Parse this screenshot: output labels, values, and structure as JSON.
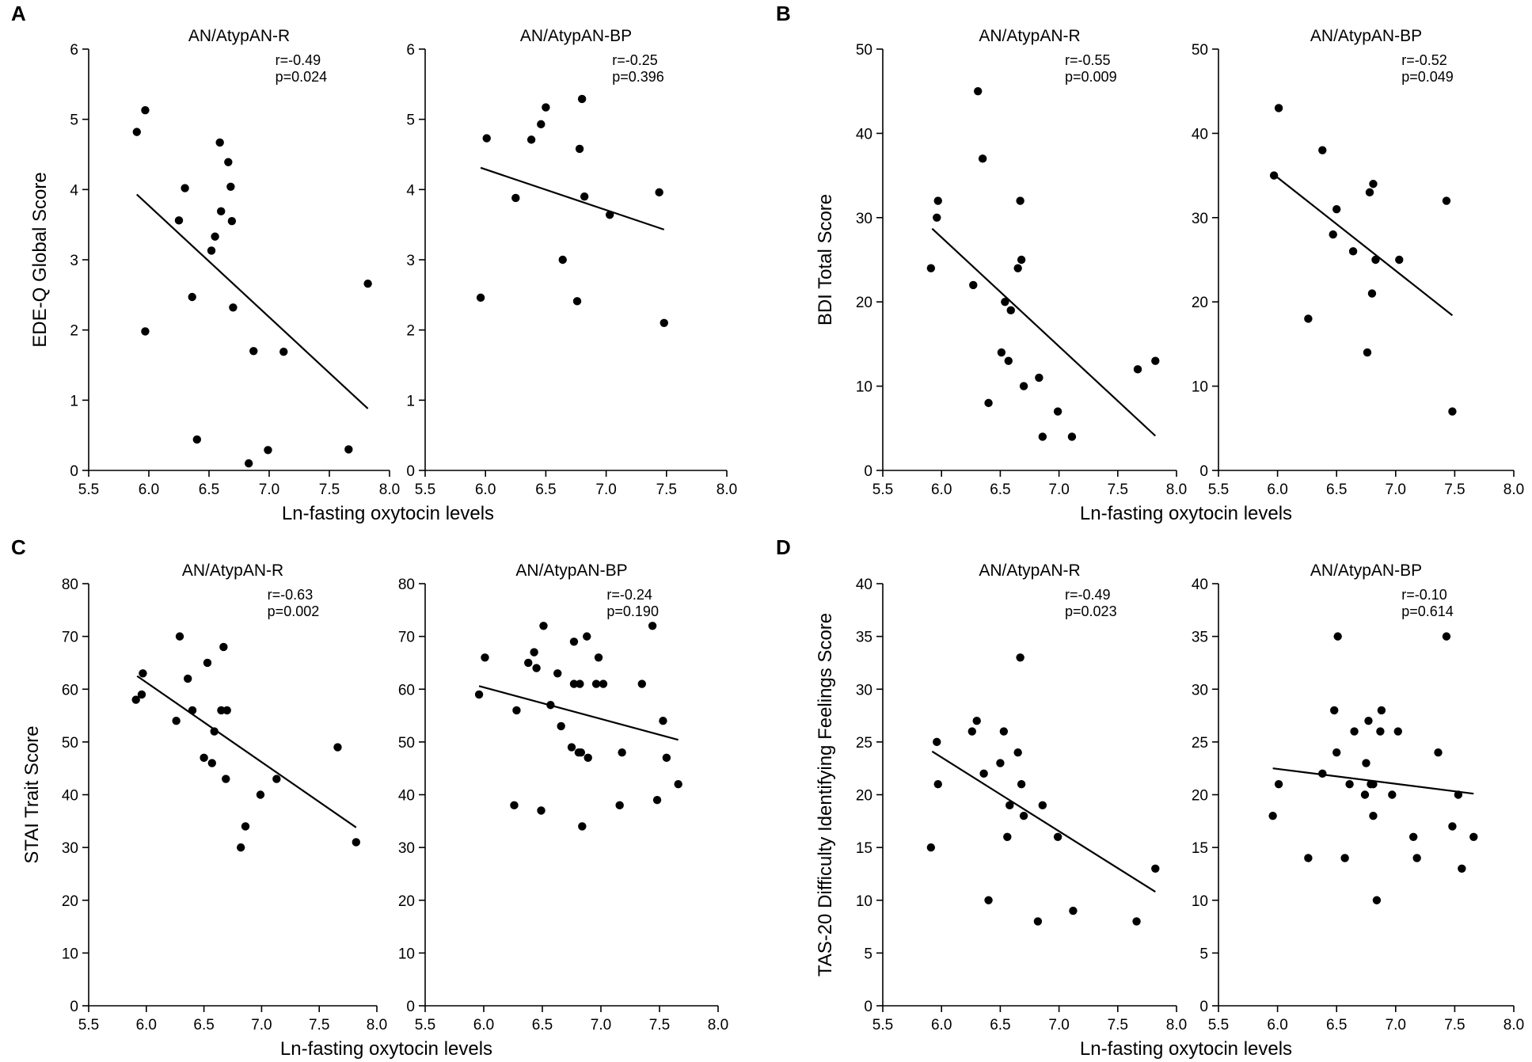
{
  "chart_data": [
    {
      "id": "A",
      "letter": "A",
      "type": "scatter",
      "ylabel": "EDE-Q Global Score",
      "xlabel": "Ln-fasting oxytocin levels",
      "ylim": [
        0,
        6
      ],
      "yticks": [
        0,
        1,
        2,
        3,
        4,
        5,
        6
      ],
      "subplots": [
        {
          "title": "AN/AtypAN-R",
          "r_text": "r=-0.49",
          "p_text": "p=0.024",
          "xlim": [
            5.5,
            8.0
          ],
          "xticks": [
            "5.5",
            "6.0",
            "6.5",
            "7.0",
            "7.5",
            "8.0"
          ],
          "regression": {
            "x": [
              5.9,
              7.82
            ],
            "y": [
              3.93,
              0.88
            ]
          },
          "points": [
            [
              5.9,
              4.82
            ],
            [
              5.97,
              5.13
            ],
            [
              5.97,
              1.98
            ],
            [
              6.25,
              3.56
            ],
            [
              6.3,
              4.02
            ],
            [
              6.36,
              2.47
            ],
            [
              6.4,
              0.44
            ],
            [
              6.52,
              3.13
            ],
            [
              6.55,
              3.33
            ],
            [
              6.59,
              4.67
            ],
            [
              6.6,
              3.69
            ],
            [
              6.66,
              4.39
            ],
            [
              6.68,
              4.04
            ],
            [
              6.69,
              3.55
            ],
            [
              6.7,
              2.32
            ],
            [
              6.83,
              0.1
            ],
            [
              6.87,
              1.7
            ],
            [
              6.99,
              0.29
            ],
            [
              7.12,
              1.69
            ],
            [
              7.66,
              0.3
            ],
            [
              7.82,
              2.66
            ]
          ]
        },
        {
          "title": "AN/AtypAN-BP",
          "r_text": "r=-0.25",
          "p_text": "p=0.396",
          "xlim": [
            5.5,
            8.0
          ],
          "xticks": [
            "5.5",
            "6.0",
            "6.5",
            "7.0",
            "7.5",
            "8.0"
          ],
          "regression": {
            "x": [
              5.96,
              7.48
            ],
            "y": [
              4.31,
              3.43
            ]
          },
          "points": [
            [
              5.96,
              2.46
            ],
            [
              6.01,
              4.73
            ],
            [
              6.25,
              3.88
            ],
            [
              6.38,
              4.71
            ],
            [
              6.46,
              4.93
            ],
            [
              6.5,
              5.17
            ],
            [
              6.64,
              3.0
            ],
            [
              6.76,
              2.41
            ],
            [
              6.78,
              4.58
            ],
            [
              6.8,
              5.29
            ],
            [
              6.82,
              3.9
            ],
            [
              7.03,
              3.64
            ],
            [
              7.44,
              3.96
            ],
            [
              7.48,
              2.1
            ]
          ]
        }
      ]
    },
    {
      "id": "B",
      "letter": "B",
      "type": "scatter",
      "ylabel": "BDI Total Score",
      "xlabel": "Ln-fasting oxytocin levels",
      "ylim": [
        0,
        50
      ],
      "yticks": [
        0,
        10,
        20,
        30,
        40,
        50
      ],
      "subplots": [
        {
          "title": "AN/AtypAN-R",
          "r_text": "r=-0.55",
          "p_text": "p=0.009",
          "xlim": [
            5.5,
            8.0
          ],
          "xticks": [
            "5.5",
            "6.0",
            "6.5",
            "7.0",
            "7.5",
            "8.0"
          ],
          "regression": {
            "x": [
              5.92,
              7.82
            ],
            "y": [
              28.7,
              4.1
            ]
          },
          "points": [
            [
              5.91,
              24
            ],
            [
              5.96,
              30
            ],
            [
              5.97,
              32
            ],
            [
              6.27,
              22
            ],
            [
              6.31,
              45
            ],
            [
              6.35,
              37
            ],
            [
              6.4,
              8
            ],
            [
              6.51,
              14
            ],
            [
              6.54,
              20
            ],
            [
              6.57,
              13
            ],
            [
              6.59,
              19
            ],
            [
              6.65,
              24
            ],
            [
              6.67,
              32
            ],
            [
              6.68,
              25
            ],
            [
              6.7,
              10
            ],
            [
              6.83,
              11
            ],
            [
              6.86,
              4
            ],
            [
              6.99,
              7
            ],
            [
              7.11,
              4
            ],
            [
              7.67,
              12
            ],
            [
              7.82,
              13
            ]
          ]
        },
        {
          "title": "AN/AtypAN-BP",
          "r_text": "r=-0.52",
          "p_text": "p=0.049",
          "xlim": [
            5.5,
            8.0
          ],
          "xticks": [
            "5.5",
            "6.0",
            "6.5",
            "7.0",
            "7.5",
            "8.0"
          ],
          "regression": {
            "x": [
              5.96,
              7.48
            ],
            "y": [
              35.2,
              18.4
            ]
          },
          "points": [
            [
              5.97,
              35
            ],
            [
              6.01,
              43
            ],
            [
              6.26,
              18
            ],
            [
              6.38,
              38
            ],
            [
              6.47,
              28
            ],
            [
              6.5,
              31
            ],
            [
              6.64,
              26
            ],
            [
              6.76,
              14
            ],
            [
              6.78,
              33
            ],
            [
              6.8,
              21
            ],
            [
              6.81,
              34
            ],
            [
              6.83,
              25
            ],
            [
              7.03,
              25
            ],
            [
              7.43,
              32
            ],
            [
              7.48,
              7
            ]
          ]
        }
      ]
    },
    {
      "id": "C",
      "letter": "C",
      "type": "scatter",
      "ylabel": "STAI Trait Score",
      "xlabel": "Ln-fasting oxytocin levels",
      "ylim": [
        0,
        80
      ],
      "yticks": [
        0,
        10,
        20,
        30,
        40,
        50,
        60,
        70,
        80
      ],
      "subplots": [
        {
          "title": "AN/AtypAN-R",
          "r_text": "r=-0.63",
          "p_text": "p=0.002",
          "xlim": [
            5.5,
            8.0
          ],
          "xticks": [
            "5.5",
            "6.0",
            "6.5",
            "7.0",
            "7.5",
            "8.0"
          ],
          "regression": {
            "x": [
              5.92,
              7.82
            ],
            "y": [
              62.5,
              33.8
            ]
          },
          "points": [
            [
              5.91,
              58
            ],
            [
              5.96,
              59
            ],
            [
              5.97,
              63
            ],
            [
              6.26,
              54
            ],
            [
              6.29,
              70
            ],
            [
              6.36,
              62
            ],
            [
              6.4,
              56
            ],
            [
              6.5,
              47
            ],
            [
              6.53,
              65
            ],
            [
              6.57,
              46
            ],
            [
              6.59,
              52
            ],
            [
              6.65,
              56
            ],
            [
              6.67,
              68
            ],
            [
              6.69,
              43
            ],
            [
              6.7,
              56
            ],
            [
              6.82,
              30
            ],
            [
              6.86,
              34
            ],
            [
              6.99,
              40
            ],
            [
              7.13,
              43
            ],
            [
              7.66,
              49
            ],
            [
              7.82,
              31
            ]
          ]
        },
        {
          "title": "AN/AtypAN-BP",
          "r_text": "r=-0.24",
          "p_text": "p=0.190",
          "xlim": [
            5.5,
            8.0
          ],
          "xticks": [
            "5.5",
            "6.0",
            "6.5",
            "7.0",
            "7.5",
            "8.0"
          ],
          "regression": {
            "x": [
              5.96,
              7.66
            ],
            "y": [
              60.6,
              50.4
            ]
          },
          "points": [
            [
              5.96,
              59
            ],
            [
              6.01,
              66
            ],
            [
              6.26,
              38
            ],
            [
              6.28,
              56
            ],
            [
              6.38,
              65
            ],
            [
              6.43,
              67
            ],
            [
              6.45,
              64
            ],
            [
              6.49,
              37
            ],
            [
              6.51,
              72
            ],
            [
              6.57,
              57
            ],
            [
              6.63,
              63
            ],
            [
              6.66,
              53
            ],
            [
              6.75,
              49
            ],
            [
              6.77,
              69
            ],
            [
              6.77,
              61
            ],
            [
              6.81,
              48
            ],
            [
              6.82,
              61
            ],
            [
              6.83,
              48
            ],
            [
              6.84,
              34
            ],
            [
              6.88,
              70
            ],
            [
              6.89,
              47
            ],
            [
              6.96,
              61
            ],
            [
              6.98,
              66
            ],
            [
              7.02,
              61
            ],
            [
              7.16,
              38
            ],
            [
              7.18,
              48
            ],
            [
              7.35,
              61
            ],
            [
              7.44,
              72
            ],
            [
              7.48,
              39
            ],
            [
              7.53,
              54
            ],
            [
              7.56,
              47
            ],
            [
              7.66,
              42
            ]
          ]
        }
      ]
    },
    {
      "id": "D",
      "letter": "D",
      "type": "scatter",
      "ylabel": "TAS-20 Difficulty Identifying Feelings Score",
      "xlabel": "Ln-fasting oxytocin levels",
      "ylim": [
        0,
        40
      ],
      "yticks": [
        0,
        5,
        10,
        15,
        20,
        25,
        30,
        35,
        40
      ],
      "subplots": [
        {
          "title": "AN/AtypAN-R",
          "r_text": "r=-0.49",
          "p_text": "p=0.023",
          "xlim": [
            5.5,
            8.0
          ],
          "xticks": [
            "5.5",
            "6.0",
            "6.5",
            "7.0",
            "7.5",
            "8.0"
          ],
          "regression": {
            "x": [
              5.92,
              7.82
            ],
            "y": [
              24.1,
              10.8
            ]
          },
          "points": [
            [
              5.91,
              15
            ],
            [
              5.96,
              25
            ],
            [
              5.97,
              21
            ],
            [
              6.26,
              26
            ],
            [
              6.3,
              27
            ],
            [
              6.36,
              22
            ],
            [
              6.4,
              10
            ],
            [
              6.5,
              23
            ],
            [
              6.53,
              26
            ],
            [
              6.56,
              16
            ],
            [
              6.58,
              19
            ],
            [
              6.65,
              24
            ],
            [
              6.67,
              33
            ],
            [
              6.68,
              21
            ],
            [
              6.7,
              18
            ],
            [
              6.82,
              8
            ],
            [
              6.86,
              19
            ],
            [
              6.99,
              16
            ],
            [
              7.12,
              9
            ],
            [
              7.66,
              8
            ],
            [
              7.82,
              13
            ]
          ]
        },
        {
          "title": "AN/AtypAN-BP",
          "r_text": "r=-0.10",
          "p_text": "p=0.614",
          "xlim": [
            5.5,
            8.0
          ],
          "xticks": [
            "5.5",
            "6.0",
            "6.5",
            "7.0",
            "7.5",
            "8.0"
          ],
          "regression": {
            "x": [
              5.96,
              7.66
            ],
            "y": [
              22.5,
              20.1
            ]
          },
          "points": [
            [
              5.96,
              18
            ],
            [
              6.01,
              21
            ],
            [
              6.26,
              14
            ],
            [
              6.38,
              22
            ],
            [
              6.48,
              28
            ],
            [
              6.51,
              35
            ],
            [
              6.5,
              24
            ],
            [
              6.57,
              14
            ],
            [
              6.61,
              21
            ],
            [
              6.65,
              26
            ],
            [
              6.74,
              20
            ],
            [
              6.75,
              23
            ],
            [
              6.77,
              27
            ],
            [
              6.79,
              21
            ],
            [
              6.81,
              21
            ],
            [
              6.81,
              18
            ],
            [
              6.84,
              10
            ],
            [
              6.87,
              26
            ],
            [
              6.88,
              28
            ],
            [
              6.97,
              20
            ],
            [
              7.02,
              26
            ],
            [
              7.15,
              16
            ],
            [
              7.18,
              14
            ],
            [
              7.36,
              24
            ],
            [
              7.43,
              35
            ],
            [
              7.48,
              17
            ],
            [
              7.53,
              20
            ],
            [
              7.56,
              13
            ],
            [
              7.66,
              16
            ]
          ]
        }
      ]
    }
  ]
}
